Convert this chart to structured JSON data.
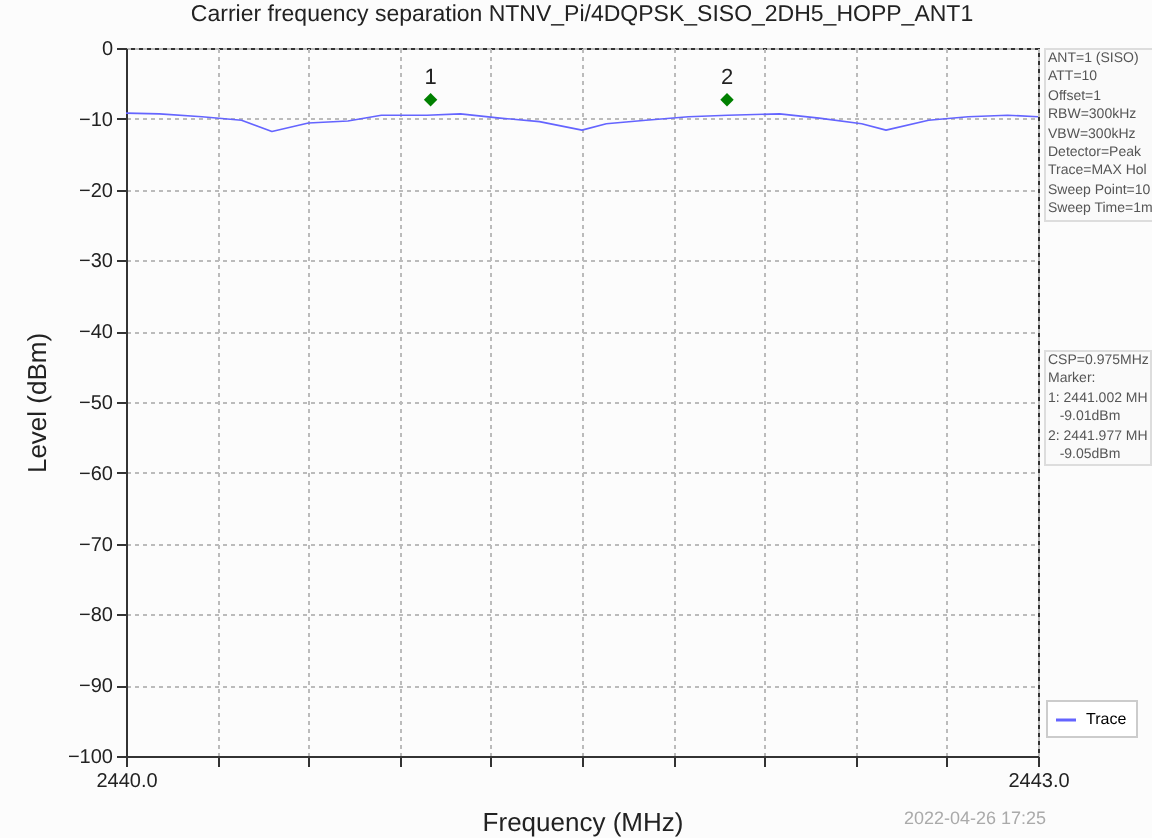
{
  "chart_data": {
    "type": "line",
    "title": "Carrier frequency separation NTNV_Pi/4DQPSK_SISO_2DH5_HOPP_ANT1",
    "xlabel": "Frequency (MHz)",
    "ylabel": "Level (dBm)",
    "xlim": [
      2440,
      2443
    ],
    "xticks": [
      {
        "value": 2440,
        "label": "2440.0"
      },
      {
        "value": 2440.3,
        "label": null
      },
      {
        "value": 2440.6,
        "label": null
      },
      {
        "value": 2440.9,
        "label": null
      },
      {
        "value": 2441.2,
        "label": null
      },
      {
        "value": 2441.5,
        "label": null
      },
      {
        "value": 2441.8,
        "label": null
      },
      {
        "value": 2442.1,
        "label": null
      },
      {
        "value": 2442.4,
        "label": null
      },
      {
        "value": 2442.7,
        "label": null
      },
      {
        "value": 2443,
        "label": "2443.0"
      }
    ],
    "ylim": [
      -100,
      0
    ],
    "yticks": [
      -100,
      -90,
      -80,
      -70,
      -60,
      -50,
      -40,
      -30,
      -20,
      -10,
      0
    ],
    "grid": true,
    "legend": "bottom right",
    "series": [
      {
        "name": "Trace",
        "color": "#6464ff",
        "x": [
          2440.0,
          2440.11,
          2440.25,
          2440.38,
          2440.48,
          2440.6,
          2440.73,
          2440.84,
          2440.99,
          2441.1,
          2441.23,
          2441.36,
          2441.5,
          2441.58,
          2441.71,
          2441.85,
          2441.98,
          2442.15,
          2442.28,
          2442.42,
          2442.5,
          2442.64,
          2442.77,
          2442.9,
          2443.0
        ],
        "values": [
          -9.2,
          -9.3,
          -9.7,
          -10.2,
          -11.8,
          -10.6,
          -10.3,
          -9.5,
          -9.5,
          -9.3,
          -9.9,
          -10.4,
          -11.6,
          -10.7,
          -10.2,
          -9.7,
          -9.5,
          -9.3,
          -9.9,
          -10.7,
          -11.6,
          -10.2,
          -9.7,
          -9.5,
          -9.7
        ]
      },
      {
        "type": "scatter",
        "color": "#008000",
        "marker": "diamond",
        "x": [
          2441.002,
          2441.977
        ],
        "values": [
          -7.3,
          -7.3
        ]
      }
    ],
    "annotations": [
      {
        "text": "1",
        "x": 2441.002,
        "y": -7.3
      },
      {
        "text": "2",
        "x": 2441.977,
        "y": -7.3
      },
      "ANT=1 (SISO)\nATT=10\nOffset=1\nRBW=300kHz\nVBW=300kHz\nDetector=Peak\nTrace=MAX Hol\nSweep Point=10\nSweep Time=1m",
      "CSP=0.975MHz\nMarker:\n1: 2441.002 MH\n   -9.01dBm\n2: 2441.977 MH\n   -9.05dBm",
      "2022-04-26 17:25"
    ]
  }
}
